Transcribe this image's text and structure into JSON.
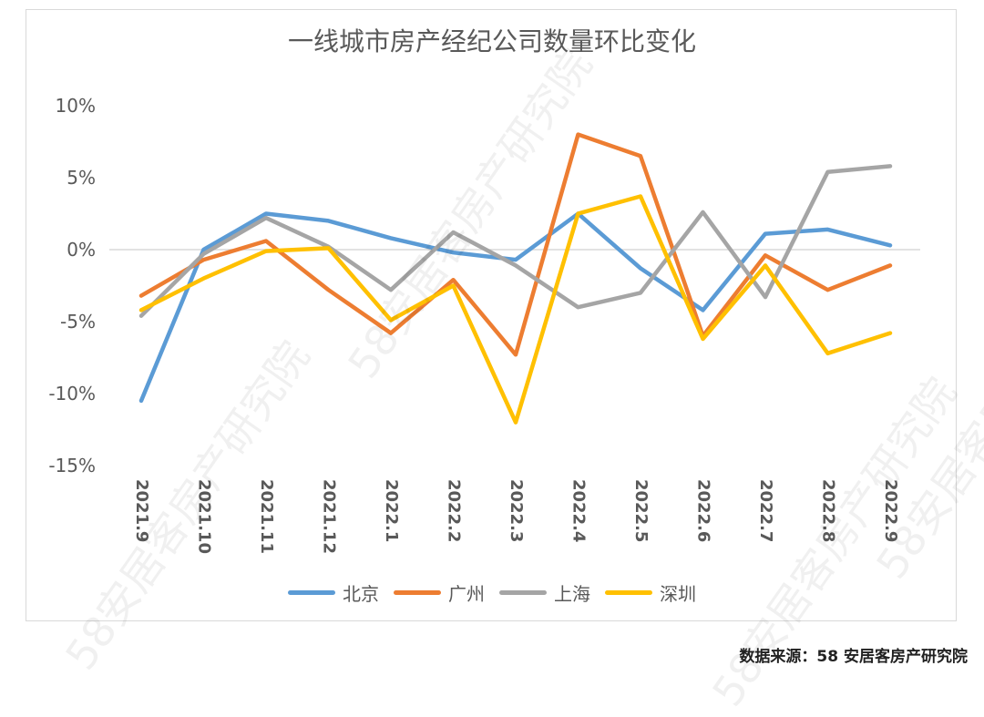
{
  "chart_data": {
    "type": "line",
    "title": "一线城市房产经纪公司数量环比变化",
    "categories": [
      "2021.9",
      "2021.10",
      "2021.11",
      "2021.12",
      "2022.1",
      "2022.2",
      "2022.3",
      "2022.4",
      "2022.5",
      "2022.6",
      "2022.7",
      "2022.8",
      "2022.9"
    ],
    "ylim": [
      -15,
      10
    ],
    "yticks": [
      10,
      5,
      0,
      -5,
      -10,
      -15
    ],
    "ytick_labels": [
      "10%",
      "5%",
      "0%",
      "-5%",
      "-10%",
      "-15%"
    ],
    "grid": false,
    "legend_position": "bottom",
    "series": [
      {
        "name": "北京",
        "color": "#5b9bd5",
        "values": [
          -10.5,
          0.0,
          2.5,
          2.0,
          0.8,
          -0.2,
          -0.7,
          2.5,
          -1.3,
          -4.2,
          1.1,
          1.4,
          0.3
        ]
      },
      {
        "name": "广州",
        "color": "#ed7d31",
        "values": [
          -3.2,
          -0.7,
          0.6,
          -2.8,
          -5.8,
          -2.1,
          -7.3,
          8.0,
          6.5,
          -6.0,
          -0.4,
          -2.8,
          -1.1
        ]
      },
      {
        "name": "上海",
        "color": "#a5a5a5",
        "values": [
          -4.6,
          -0.3,
          2.2,
          0.2,
          -2.8,
          1.2,
          -1.1,
          -4.0,
          -3.0,
          2.6,
          -3.3,
          5.4,
          5.8
        ]
      },
      {
        "name": "深圳",
        "color": "#ffc000",
        "values": [
          -4.2,
          -2.0,
          -0.1,
          0.1,
          -4.9,
          -2.5,
          -12.0,
          2.5,
          3.7,
          -6.2,
          -1.1,
          -7.2,
          -5.8
        ]
      }
    ]
  },
  "source_text": "数据来源：58 安居客房产研究院",
  "watermark_text": "58安居客房产研究院"
}
